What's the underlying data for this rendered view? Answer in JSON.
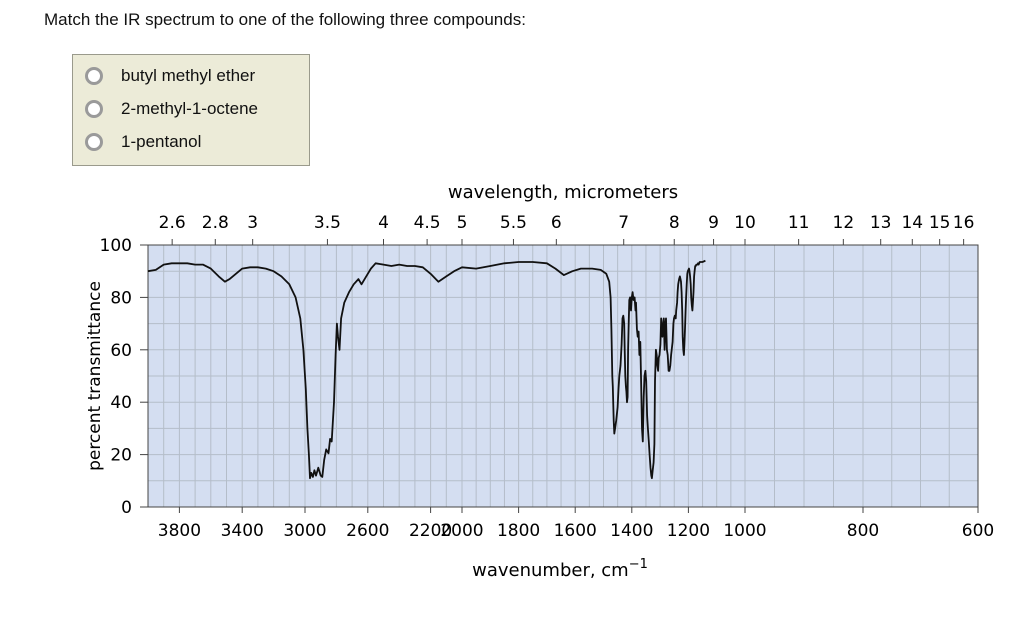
{
  "question": "Match the IR spectrum to one of the following three compounds:",
  "options": [
    {
      "label": "butyl methyl ether"
    },
    {
      "label": "2-methyl-1-octene"
    },
    {
      "label": "1-pentanol"
    }
  ],
  "chart_data": {
    "type": "line",
    "xlabel": "wavenumber, cm",
    "xlabel_sup": "−1",
    "top_axis_label": "wavelength, micrometers",
    "ylabel": "percent transmittance",
    "ylim": [
      0,
      100
    ],
    "yticks": [
      "0",
      "20",
      "40",
      "60",
      "80",
      "100"
    ],
    "xticks": [
      "3800",
      "3400",
      "3000",
      "2600",
      "2200",
      "2000",
      "1800",
      "1600",
      "1400",
      "1200",
      "1000",
      "800",
      "600"
    ],
    "top_ticks": [
      "2.6",
      "2.8",
      "3",
      "3.5",
      "4",
      "4.5",
      "5",
      "5.5",
      "6",
      "7",
      "8",
      "9",
      "10",
      "11",
      "12",
      "13",
      "14",
      "15",
      "16"
    ],
    "grid": true,
    "colors": {
      "plot_bg": "#d4def1",
      "grid": "#b4bdc9",
      "line": "#111111"
    },
    "series": [
      {
        "name": "",
        "points": [
          [
            4000,
            90
          ],
          [
            3950,
            90.5
          ],
          [
            3900,
            92.5
          ],
          [
            3850,
            93
          ],
          [
            3800,
            93
          ],
          [
            3750,
            93
          ],
          [
            3700,
            92.5
          ],
          [
            3650,
            92.5
          ],
          [
            3600,
            91
          ],
          [
            3550,
            88
          ],
          [
            3510,
            86
          ],
          [
            3480,
            87
          ],
          [
            3440,
            89
          ],
          [
            3400,
            91
          ],
          [
            3350,
            91.5
          ],
          [
            3300,
            91.5
          ],
          [
            3250,
            91
          ],
          [
            3200,
            90
          ],
          [
            3150,
            88
          ],
          [
            3100,
            85
          ],
          [
            3060,
            80
          ],
          [
            3030,
            72
          ],
          [
            3010,
            60
          ],
          [
            2995,
            45
          ],
          [
            2985,
            30
          ],
          [
            2975,
            20
          ],
          [
            2968,
            11
          ],
          [
            2960,
            13
          ],
          [
            2950,
            11.5
          ],
          [
            2940,
            14
          ],
          [
            2930,
            12
          ],
          [
            2915,
            15
          ],
          [
            2900,
            12
          ],
          [
            2890,
            11.5
          ],
          [
            2878,
            18
          ],
          [
            2865,
            22
          ],
          [
            2850,
            20.5
          ],
          [
            2840,
            26
          ],
          [
            2830,
            25
          ],
          [
            2815,
            40
          ],
          [
            2805,
            58
          ],
          [
            2797,
            70
          ],
          [
            2790,
            65
          ],
          [
            2780,
            60
          ],
          [
            2770,
            72
          ],
          [
            2750,
            78
          ],
          [
            2720,
            82
          ],
          [
            2690,
            85
          ],
          [
            2660,
            87
          ],
          [
            2640,
            85
          ],
          [
            2610,
            88
          ],
          [
            2580,
            91
          ],
          [
            2550,
            93
          ],
          [
            2500,
            92.5
          ],
          [
            2450,
            92
          ],
          [
            2400,
            92.5
          ],
          [
            2350,
            92
          ],
          [
            2300,
            92
          ],
          [
            2250,
            91.5
          ],
          [
            2200,
            89
          ],
          [
            2150,
            86
          ],
          [
            2100,
            88
          ],
          [
            2050,
            90
          ],
          [
            2000,
            91.5
          ],
          [
            1950,
            91
          ],
          [
            1900,
            92
          ],
          [
            1850,
            93
          ],
          [
            1800,
            93.5
          ],
          [
            1750,
            93.5
          ],
          [
            1700,
            93
          ],
          [
            1670,
            91
          ],
          [
            1640,
            88.5
          ],
          [
            1610,
            90
          ],
          [
            1580,
            91
          ],
          [
            1540,
            91
          ],
          [
            1510,
            90.5
          ],
          [
            1490,
            89
          ],
          [
            1480,
            86
          ],
          [
            1475,
            80
          ],
          [
            1472,
            68
          ],
          [
            1469,
            50
          ],
          [
            1467,
            46
          ],
          [
            1464,
            33
          ],
          [
            1462,
            28
          ],
          [
            1459,
            30
          ],
          [
            1455,
            33
          ],
          [
            1450,
            38
          ],
          [
            1447,
            45
          ],
          [
            1444,
            50
          ],
          [
            1440,
            54
          ],
          [
            1436,
            62
          ],
          [
            1433,
            72
          ],
          [
            1430,
            73
          ],
          [
            1427,
            70
          ],
          [
            1425,
            60
          ],
          [
            1423,
            50
          ],
          [
            1421,
            46
          ],
          [
            1419,
            44
          ],
          [
            1417,
            40
          ],
          [
            1415,
            42
          ],
          [
            1413,
            60
          ],
          [
            1411,
            70
          ],
          [
            1409,
            79
          ],
          [
            1406,
            80
          ],
          [
            1403,
            75
          ],
          [
            1400,
            80
          ],
          [
            1397,
            82
          ],
          [
            1394,
            79
          ],
          [
            1390,
            80
          ],
          [
            1387,
            75
          ],
          [
            1385,
            78
          ],
          [
            1382,
            68
          ],
          [
            1379,
            65
          ],
          [
            1376,
            67
          ],
          [
            1373,
            58
          ],
          [
            1370,
            63
          ],
          [
            1367,
            48
          ],
          [
            1364,
            30
          ],
          [
            1361,
            25
          ],
          [
            1358,
            42
          ],
          [
            1355,
            50
          ],
          [
            1352,
            52
          ],
          [
            1349,
            48
          ],
          [
            1346,
            35
          ],
          [
            1343,
            30
          ],
          [
            1340,
            25
          ],
          [
            1337,
            20
          ],
          [
            1334,
            15
          ],
          [
            1331,
            12
          ],
          [
            1329,
            11
          ],
          [
            1326,
            14
          ],
          [
            1323,
            17
          ],
          [
            1320,
            24
          ],
          [
            1318,
            48
          ],
          [
            1315,
            60
          ],
          [
            1312,
            58
          ],
          [
            1310,
            54
          ],
          [
            1307,
            52
          ],
          [
            1305,
            57
          ],
          [
            1302,
            58
          ],
          [
            1299,
            62
          ],
          [
            1296,
            72
          ],
          [
            1294,
            70
          ],
          [
            1292,
            65
          ],
          [
            1289,
            68
          ],
          [
            1287,
            72
          ],
          [
            1284,
            60
          ],
          [
            1281,
            70
          ],
          [
            1279,
            72
          ],
          [
            1276,
            60
          ],
          [
            1273,
            58
          ],
          [
            1270,
            52
          ],
          [
            1267,
            52
          ],
          [
            1264,
            54
          ],
          [
            1261,
            58
          ],
          [
            1259,
            60
          ],
          [
            1256,
            63
          ],
          [
            1253,
            70
          ],
          [
            1251,
            72
          ],
          [
            1248,
            73
          ],
          [
            1245,
            72
          ],
          [
            1243,
            75
          ],
          [
            1240,
            78
          ],
          [
            1238,
            82
          ],
          [
            1236,
            85
          ],
          [
            1233,
            87
          ],
          [
            1230,
            88
          ],
          [
            1228,
            87
          ],
          [
            1226,
            86
          ],
          [
            1224,
            82
          ],
          [
            1222,
            75
          ],
          [
            1220,
            65
          ],
          [
            1218,
            60
          ],
          [
            1216,
            58
          ],
          [
            1214,
            62
          ],
          [
            1212,
            68
          ],
          [
            1210,
            75
          ],
          [
            1208,
            80
          ],
          [
            1206,
            85
          ],
          [
            1204,
            89
          ],
          [
            1202,
            90
          ],
          [
            1200,
            90.5
          ],
          [
            1198,
            91
          ],
          [
            1196,
            90
          ],
          [
            1194,
            88
          ],
          [
            1192,
            85
          ],
          [
            1190,
            80
          ],
          [
            1188,
            77
          ],
          [
            1186,
            75
          ],
          [
            1184,
            78
          ],
          [
            1182,
            82
          ],
          [
            1180,
            88
          ],
          [
            1178,
            90
          ],
          [
            1176,
            92
          ],
          [
            1174,
            92
          ],
          [
            1172,
            92.5
          ],
          [
            1170,
            92.5
          ],
          [
            1168,
            92.5
          ],
          [
            1166,
            93
          ],
          [
            1164,
            92.5
          ],
          [
            1162,
            93
          ],
          [
            1160,
            93.5
          ],
          [
            1150,
            93.5
          ],
          [
            1140,
            94
          ]
        ],
        "x_domain_note": ""
      }
    ]
  }
}
